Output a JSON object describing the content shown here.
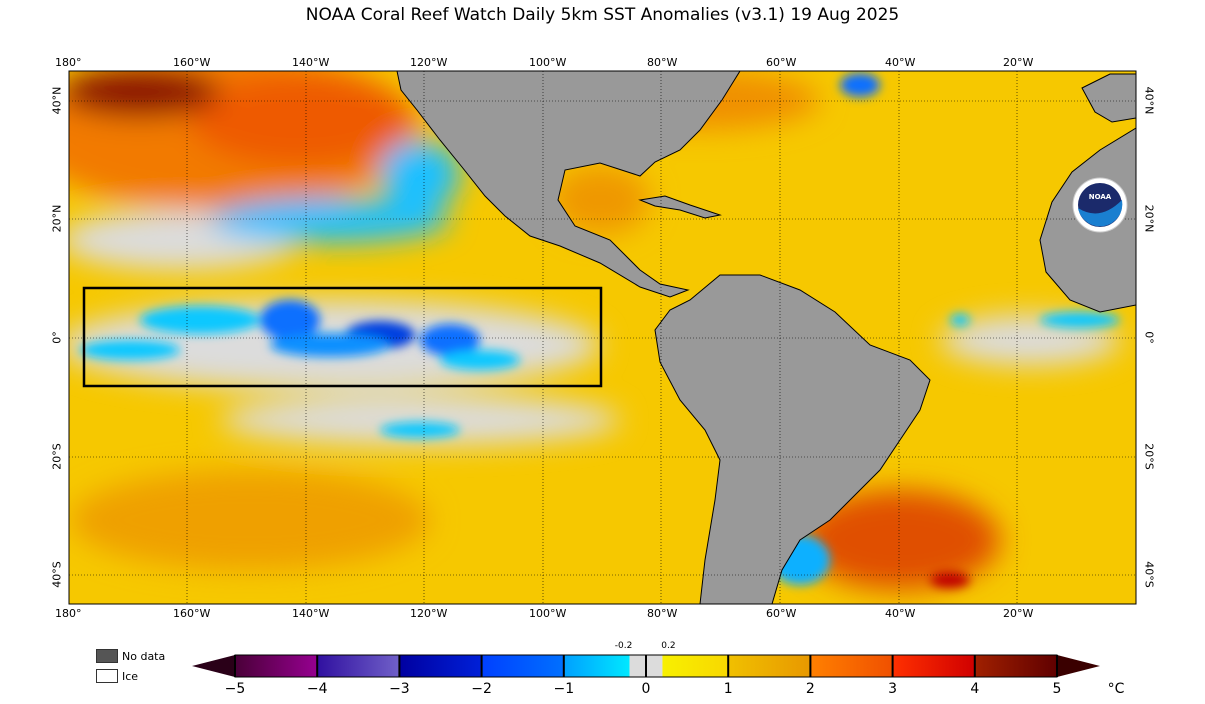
{
  "title": "NOAA Coral Reef Watch Daily 5km SST Anomalies  (v3.1)   19 Aug 2025",
  "map": {
    "lon_labels": [
      "180°",
      "160°W",
      "140°W",
      "120°W",
      "100°W",
      "80°W",
      "60°W",
      "40°W",
      "20°W"
    ],
    "lat_labels": [
      "40°N",
      "20°N",
      "0°",
      "20°S",
      "40°S"
    ],
    "extent": {
      "lon": [
        -180,
        0
      ],
      "lat": [
        -45,
        45
      ]
    },
    "highlight_box": {
      "lon": [
        -177.5,
        -90
      ],
      "lat": [
        -8,
        8.5
      ]
    },
    "land_color": "#999999",
    "logo": "NOAA"
  },
  "legend": {
    "items": [
      {
        "label": "No data",
        "color": "#555555"
      },
      {
        "label": "Ice",
        "color": "#ffffff"
      }
    ]
  },
  "colorbar": {
    "min": -5,
    "max": 5,
    "ticks": [
      "−5",
      "−4",
      "−3",
      "−2",
      "−1",
      "0",
      "1",
      "2",
      "3",
      "4",
      "5"
    ],
    "small_ticks": [
      "-0.2",
      "0.2"
    ],
    "unit": "°C",
    "segments": [
      {
        "from": -5,
        "to": -4,
        "colors": [
          "#4a0038",
          "#960090"
        ]
      },
      {
        "from": -4,
        "to": -3,
        "colors": [
          "#3010a0",
          "#7060c8"
        ]
      },
      {
        "from": -3,
        "to": -2,
        "colors": [
          "#0000a0",
          "#0020d8"
        ]
      },
      {
        "from": -2,
        "to": -1,
        "colors": [
          "#0040ff",
          "#0070ff"
        ]
      },
      {
        "from": -1,
        "to": -0.2,
        "colors": [
          "#00a0ff",
          "#00e8ff"
        ]
      },
      {
        "from": -0.2,
        "to": 0.2,
        "colors": [
          "#dcdcdc",
          "#dcdcdc"
        ]
      },
      {
        "from": 0.2,
        "to": 1,
        "colors": [
          "#f8f000",
          "#f8d800"
        ]
      },
      {
        "from": 1,
        "to": 2,
        "colors": [
          "#f0c000",
          "#e89800"
        ]
      },
      {
        "from": 2,
        "to": 3,
        "colors": [
          "#ff8000",
          "#f05000"
        ]
      },
      {
        "from": 3,
        "to": 4,
        "colors": [
          "#ff3000",
          "#d00000"
        ]
      },
      {
        "from": 4,
        "to": 5,
        "colors": [
          "#a02000",
          "#600000"
        ]
      }
    ],
    "under_color": "#2a0018",
    "over_color": "#3a0000"
  }
}
